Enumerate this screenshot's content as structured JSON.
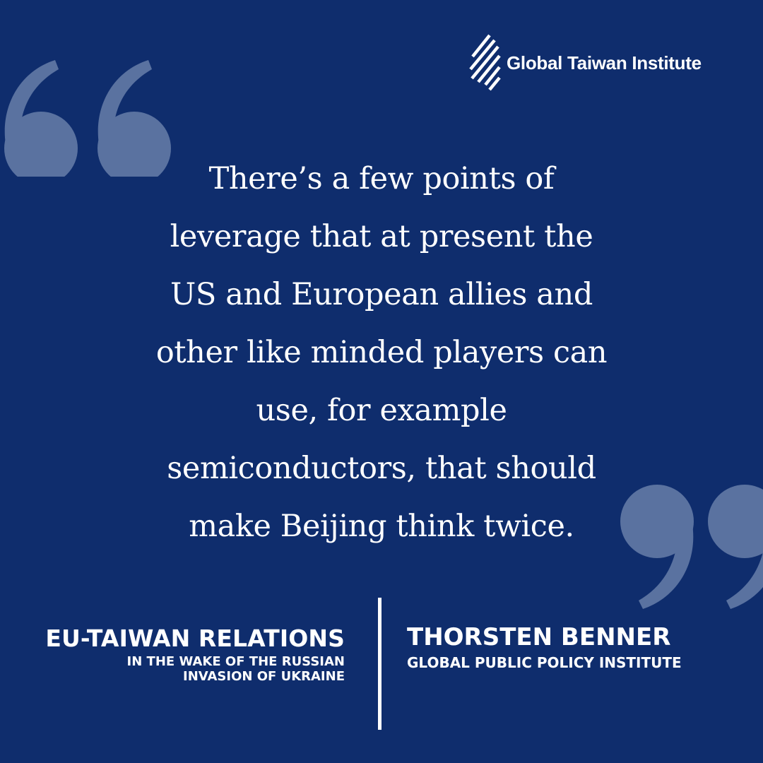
{
  "brand": {
    "name": "Global Taiwan Institute",
    "logo_icon": "diagonal-stripes-logo-icon"
  },
  "colors": {
    "background": "#0f2d6d",
    "quote_marks": "#5a72a0",
    "text": "#ffffff"
  },
  "quote": {
    "open_mark_icon": "open-quote-icon",
    "close_mark_icon": "close-quote-icon",
    "lines": [
      "There’s a few points of",
      "leverage that at present the",
      "US and European allies and",
      "other like minded players can",
      "use, for example",
      "semiconductors, that should",
      "make Beijing think twice."
    ]
  },
  "event": {
    "title": "EU-TAIWAN RELATIONS",
    "subtitle_lines": [
      "IN THE WAKE OF THE RUSSIAN",
      "INVASION OF UKRAINE"
    ]
  },
  "speaker": {
    "name": "THORSTEN BENNER",
    "organization": "GLOBAL PUBLIC POLICY INSTITUTE"
  }
}
